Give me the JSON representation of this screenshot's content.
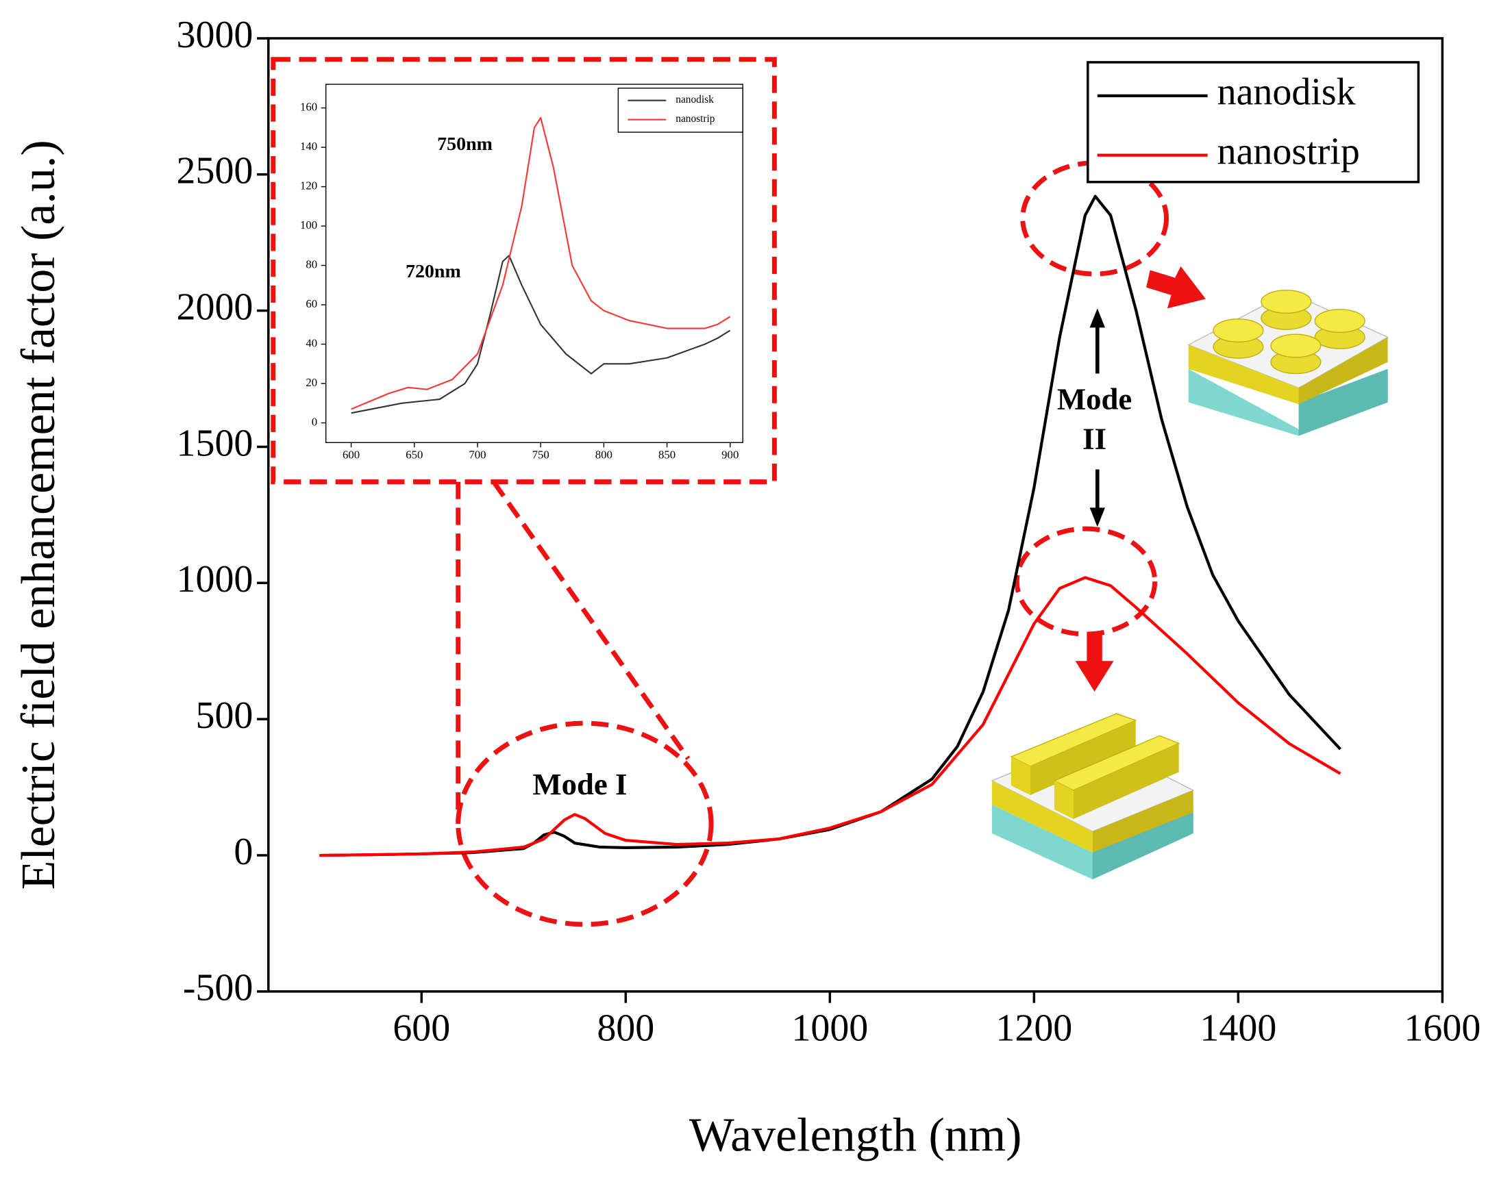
{
  "chart_data": [
    {
      "type": "line",
      "xlabel": "Wavelength (nm)",
      "ylabel": "Electric field enhancement factor (a.u.)",
      "xlim": [
        450,
        1600
      ],
      "ylim": [
        -500,
        3000
      ],
      "xticks": [
        600,
        800,
        1000,
        1200,
        1400,
        1600
      ],
      "yticks": [
        -500,
        0,
        500,
        1000,
        1500,
        2000,
        2500,
        3000
      ],
      "legend": "upper right",
      "annotations": [
        "Mode I",
        "Mode II"
      ],
      "series": [
        {
          "name": "nanodisk",
          "color": "#000000",
          "x": [
            500,
            550,
            600,
            650,
            700,
            710,
            720,
            730,
            740,
            750,
            775,
            800,
            850,
            900,
            950,
            1000,
            1050,
            1100,
            1125,
            1150,
            1175,
            1200,
            1225,
            1250,
            1260,
            1275,
            1300,
            1325,
            1350,
            1375,
            1400,
            1450,
            1500
          ],
          "values": [
            0,
            2,
            5,
            10,
            25,
            45,
            75,
            85,
            70,
            45,
            30,
            28,
            30,
            40,
            60,
            95,
            160,
            280,
            400,
            600,
            900,
            1350,
            1900,
            2350,
            2420,
            2350,
            2000,
            1600,
            1280,
            1030,
            860,
            590,
            390
          ]
        },
        {
          "name": "nanostrip",
          "color": "#ff0000",
          "x": [
            500,
            550,
            600,
            650,
            700,
            720,
            740,
            750,
            760,
            780,
            800,
            850,
            900,
            950,
            1000,
            1050,
            1100,
            1150,
            1200,
            1225,
            1250,
            1275,
            1300,
            1350,
            1400,
            1450,
            1500
          ],
          "values": [
            0,
            2,
            5,
            12,
            30,
            60,
            130,
            150,
            135,
            80,
            55,
            40,
            45,
            60,
            100,
            160,
            260,
            480,
            850,
            980,
            1020,
            990,
            910,
            740,
            560,
            410,
            300
          ]
        }
      ]
    },
    {
      "type": "line",
      "xlim": [
        580,
        910
      ],
      "ylim": [
        -10,
        172
      ],
      "xticks": [
        600,
        650,
        700,
        750,
        800,
        850,
        900
      ],
      "yticks": [
        0,
        20,
        40,
        60,
        80,
        100,
        120,
        140,
        160
      ],
      "legend": "upper right",
      "annotations": [
        "750nm",
        "720nm"
      ],
      "series": [
        {
          "name": "nanodisk",
          "color": "#333333",
          "x": [
            600,
            640,
            670,
            690,
            700,
            710,
            720,
            725,
            735,
            750,
            770,
            790,
            800,
            820,
            850,
            880,
            890,
            900
          ],
          "values": [
            5,
            10,
            12,
            20,
            30,
            55,
            82,
            85,
            70,
            50,
            35,
            25,
            30,
            30,
            33,
            40,
            43,
            47
          ]
        },
        {
          "name": "nanostrip",
          "color": "#ff3333",
          "x": [
            600,
            630,
            645,
            660,
            680,
            700,
            720,
            735,
            745,
            750,
            760,
            775,
            790,
            800,
            820,
            850,
            880,
            890,
            900
          ],
          "values": [
            7,
            15,
            18,
            17,
            22,
            35,
            70,
            110,
            150,
            155,
            130,
            80,
            62,
            57,
            52,
            48,
            48,
            50,
            54
          ]
        }
      ]
    }
  ]
}
